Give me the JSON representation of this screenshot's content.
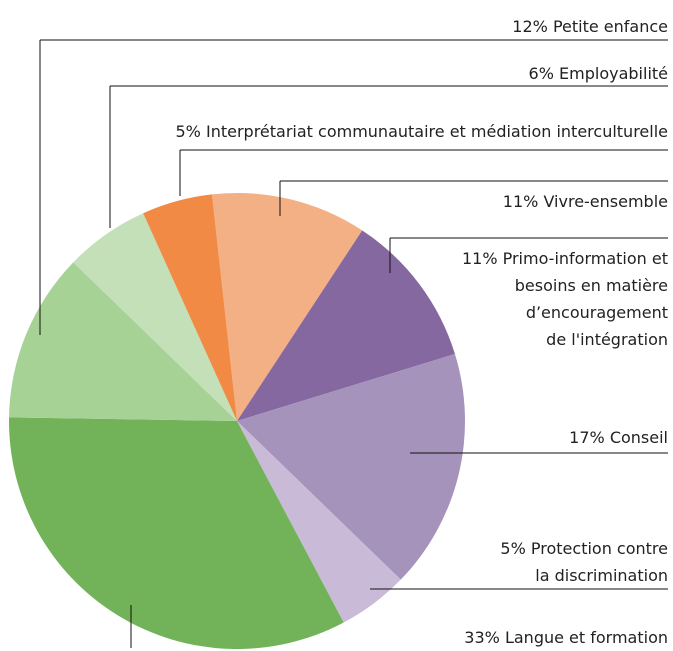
{
  "chart_data": {
    "type": "pie",
    "categories": [
      "Vivre-ensemble",
      "Primo-information et\nbesoins en matière\nd’encouragement\nde l'intégration",
      "Conseil",
      "Protection contre\nla discrimination",
      "Langue et formation",
      "Petite enfance",
      "Employabilité",
      "Interprétariat communautaire et médiation interculturelle"
    ],
    "values": [
      11,
      11,
      17,
      5,
      33,
      12,
      6,
      5
    ],
    "value_labels": [
      "11%",
      "11%",
      "17%",
      "5%",
      "33%",
      "12%",
      "6%",
      "5%"
    ],
    "colors": [
      "#f4b085",
      "#8668a1",
      "#a593bc",
      "#c9bbd7",
      "#72b35a",
      "#a6d295",
      "#c4e0b9",
      "#f08a45"
    ]
  }
}
